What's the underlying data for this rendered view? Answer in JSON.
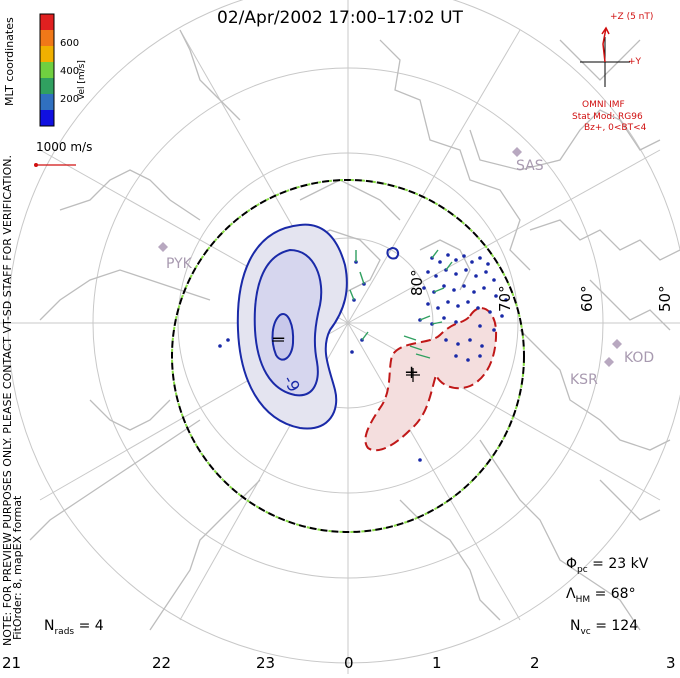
{
  "title": "02/Apr/2002 17:00–17:02 UT",
  "colorbar": {
    "label": "Vel [m/s]",
    "ticks": [
      "600",
      "400",
      "200"
    ],
    "colors": [
      "#e02020",
      "#f07818",
      "#f0b000",
      "#70d040",
      "#30a060",
      "#3070c0",
      "#1010e0"
    ]
  },
  "side_text": {
    "coords": "MLT coordinates",
    "note": "NOTE: FOR PREVIEW PURPOSES ONLY. PLEASE CONTACT VT-SD STAFF FOR VERIFICATION.",
    "fitorder": "FitOrder: 8, mapEX format"
  },
  "vector_scale": "1000 m/s",
  "imf": {
    "z_label": "+Z (5 nT)",
    "y_label": "+Y",
    "source": "OMNI IMF",
    "model": "Stat Mod: RG96",
    "cond": "Bz+, 0<BT<4"
  },
  "stations": [
    "SAS",
    "PYK",
    "KOD",
    "KSR"
  ],
  "latitudes": [
    "80°",
    "70°",
    "60°",
    "50°"
  ],
  "mlt_labels": [
    "21",
    "22",
    "23",
    "0",
    "1",
    "2",
    "3"
  ],
  "stats": {
    "phi_sym": "Φ",
    "phi_sub": "pc",
    "phi_val": "= 23 kV",
    "lam_sym": "Λ",
    "lam_sub": "HM",
    "lam_val": "= 68°",
    "nvc_sym": "N",
    "nvc_sub": "vc",
    "nvc_val": "= 124",
    "nrads_sym": "N",
    "nrads_sub": "rads",
    "nrads_val": "= 4"
  },
  "contour_labels": {
    "minus": "−",
    "plus": "+",
    "minus_val": "-9"
  },
  "colors": {
    "neg": "#1a2aa8",
    "pos": "#c01818",
    "grid": "#c8c8c8",
    "land": "#bdbdbd",
    "hm": "#000000",
    "hm_dash": "#88dd44"
  }
}
